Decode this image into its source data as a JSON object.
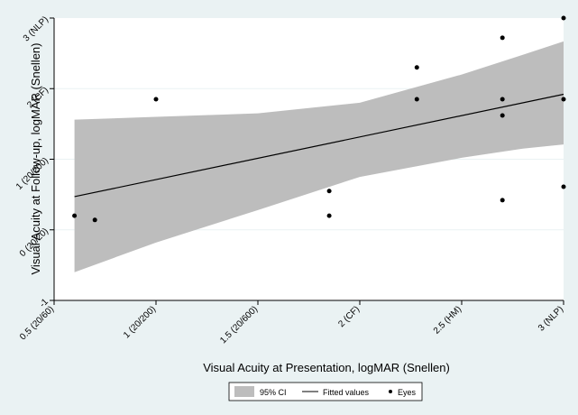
{
  "chart_data": {
    "type": "scatter",
    "title": "",
    "xlabel": "Visual Acuity at Presentation, logMAR (Snellen)",
    "ylabel": "Visual Acuity at Follow-up, logMAR (Snellen)",
    "xlim": [
      0.5,
      3.0
    ],
    "ylim": [
      -1,
      3
    ],
    "x_ticks": [
      {
        "value": 0.5,
        "label": "0.5 (20/60)"
      },
      {
        "value": 1.0,
        "label": "1 (20/200)"
      },
      {
        "value": 1.5,
        "label": "1.5 (20/600)"
      },
      {
        "value": 2.0,
        "label": "2 (CF)"
      },
      {
        "value": 2.5,
        "label": "2.5 (HM)"
      },
      {
        "value": 3.0,
        "label": "3 (NLP)"
      }
    ],
    "y_ticks": [
      {
        "value": -1,
        "label": "-1"
      },
      {
        "value": 0,
        "label": "0 (20/20)"
      },
      {
        "value": 1,
        "label": "1 (20/200)"
      },
      {
        "value": 2,
        "label": "2 (CF)"
      },
      {
        "value": 3,
        "label": "3 (NLP)"
      }
    ],
    "grid": true,
    "legend_position": "bottom-center",
    "series": [
      {
        "name": "Eyes",
        "kind": "scatter",
        "x": [
          0.6,
          0.7,
          1.0,
          1.85,
          1.85,
          2.28,
          2.28,
          2.7,
          2.7,
          2.7,
          2.7,
          3.0,
          3.0,
          3.0
        ],
        "y": [
          0.2,
          0.14,
          1.85,
          0.55,
          0.2,
          2.3,
          1.85,
          2.72,
          1.85,
          1.62,
          0.42,
          3.0,
          1.85,
          0.61
        ]
      },
      {
        "name": "Fitted values",
        "kind": "line",
        "x": [
          0.6,
          3.0
        ],
        "y": [
          0.47,
          1.92
        ]
      },
      {
        "name": "95% CI",
        "kind": "band",
        "x": [
          0.6,
          1.0,
          1.5,
          2.0,
          2.5,
          2.8,
          3.0
        ],
        "lower": [
          -0.6,
          -0.18,
          0.28,
          0.75,
          1.02,
          1.15,
          1.21
        ],
        "upper": [
          1.56,
          1.6,
          1.65,
          1.8,
          2.2,
          2.48,
          2.67
        ]
      }
    ],
    "colors": {
      "background": "#eaf2f3",
      "plot_background": "#ffffff",
      "band": "#bdbdbd",
      "line": "#000000",
      "points": "#000000",
      "grid": "#eaf2f3"
    }
  }
}
